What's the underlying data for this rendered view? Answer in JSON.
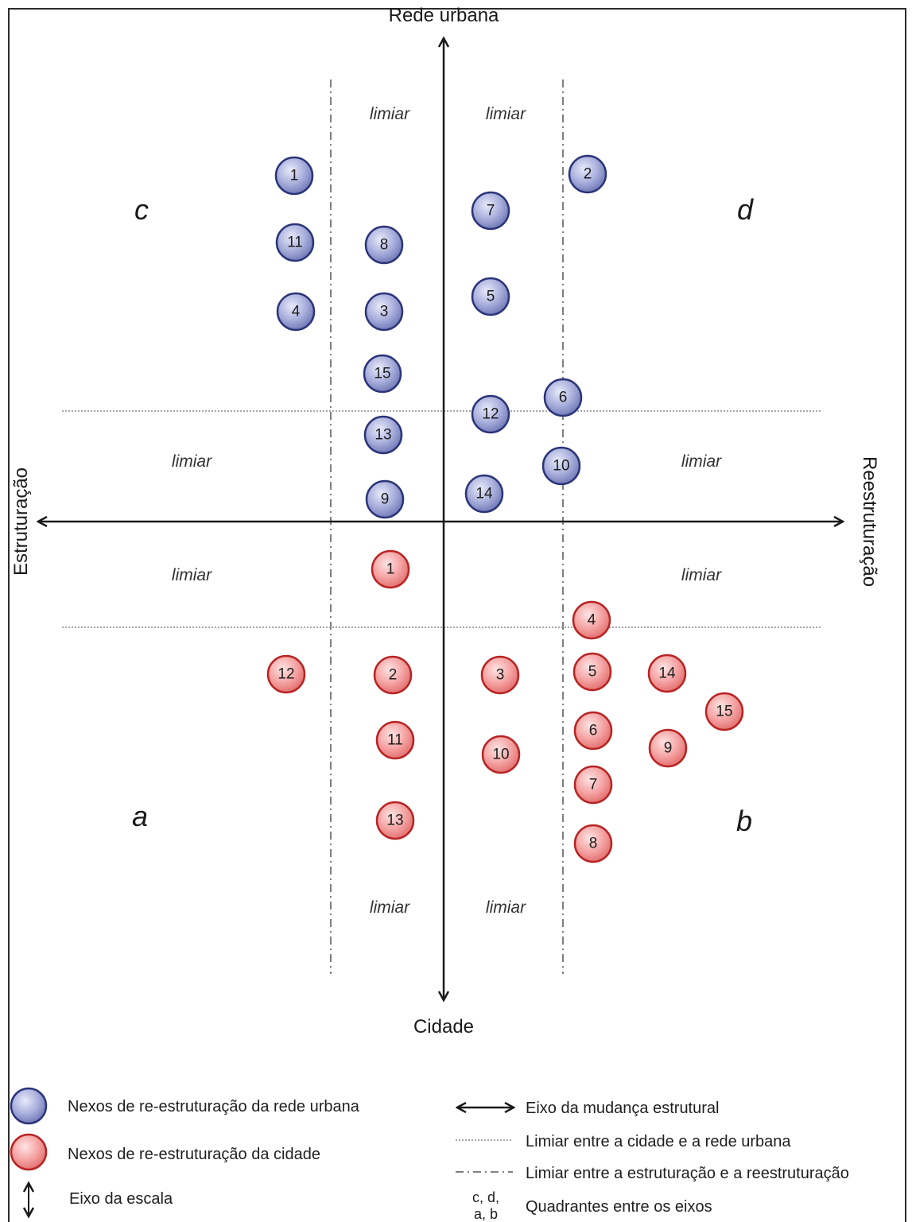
{
  "axes": {
    "top": "Rede urbana",
    "bottom": "Cidade",
    "left": "Estruturação",
    "right": "Reestruturação"
  },
  "limiar_label": "limiar",
  "quadrants": {
    "c": "c",
    "d": "d",
    "a": "a",
    "b": "b"
  },
  "colors": {
    "rede_fill": "#a7aedb",
    "rede_stroke": "#2b3479",
    "cidade_fill": "#f5a3a3",
    "cidade_stroke": "#b82323",
    "axis": "#1a1a1a"
  },
  "rede_nodes": [
    "1",
    "2",
    "7",
    "11",
    "8",
    "5",
    "4",
    "3",
    "15",
    "6",
    "12",
    "13",
    "10",
    "14",
    "9"
  ],
  "cidade_nodes": [
    "1",
    "4",
    "12",
    "2",
    "3",
    "5",
    "14",
    "15",
    "6",
    "11",
    "10",
    "9",
    "7",
    "13",
    "8"
  ],
  "legend": {
    "rede": "Nexos de re-estruturação da rede urbana",
    "cidade": "Nexos de re-estruturação da cidade",
    "escala": "Eixo da escala",
    "mudanca": "Eixo da mudança estrutural",
    "limiar_cidade_rede": "Limiar entre a cidade e a rede urbana",
    "limiar_estr_reestr": "Limiar entre a estruturação e a reestruturação",
    "quadrantes_codes_1": "c, d,",
    "quadrantes_codes_2": "a, b",
    "quadrantes": "Quadrantes entre os eixos"
  }
}
